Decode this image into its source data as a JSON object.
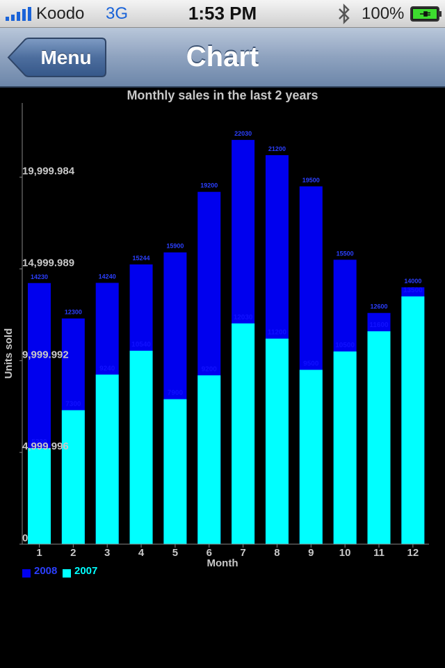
{
  "status_bar": {
    "carrier": "Koodo",
    "network": "3G",
    "time": "1:53 PM",
    "battery": "100%"
  },
  "nav": {
    "back_label": "Menu",
    "title": "Chart"
  },
  "chart_data": {
    "type": "bar",
    "stacked": false,
    "title": "Monthly sales in the last 2 years",
    "xlabel": "Month",
    "ylabel": "Units sold",
    "categories": [
      "1",
      "2",
      "3",
      "4",
      "5",
      "6",
      "7",
      "8",
      "9",
      "10",
      "11",
      "12"
    ],
    "series": [
      {
        "name": "2008",
        "color": "#0000ee",
        "values": [
          14230,
          12300,
          14240,
          15244,
          15900,
          19200,
          22030,
          21200,
          19500,
          15500,
          12600,
          14000
        ]
      },
      {
        "name": "2007",
        "color": "#00ffff",
        "values": [
          5230,
          7300,
          9240,
          10540,
          7900,
          9200,
          12030,
          11200,
          9500,
          10500,
          11600,
          13500
        ]
      }
    ],
    "yticks": [
      0,
      4999.996,
      9999.992,
      14999.989,
      19999.984
    ],
    "ytick_labels": [
      "0",
      "4,999.996",
      "9,999.992",
      "14,999.989",
      "19,999.984"
    ],
    "ylim": [
      0,
      24000
    ],
    "legend_position": "bottom-left",
    "grid": false
  }
}
